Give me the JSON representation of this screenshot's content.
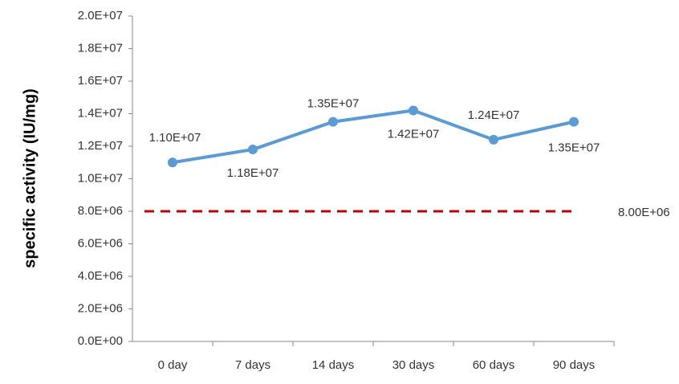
{
  "chart_data": {
    "type": "line",
    "y_label": "specific activity (IU/mg)",
    "categories": [
      "0 day",
      "7 days",
      "14 days",
      "30 days",
      "60 days",
      "90 days"
    ],
    "series": [
      {
        "color": "#5b9bd5",
        "values": [
          11000000,
          11800000,
          13500000,
          14200000,
          12400000,
          13500000
        ],
        "value_labels": [
          "1.10E+07",
          "1.18E+07",
          "1.35E+07",
          "1.42E+07",
          "1.24E+07",
          "1.35E+07"
        ]
      }
    ],
    "reference_line": {
      "value": 8000000,
      "label": "8.00E+06",
      "color": "#c00000",
      "dashed": true
    },
    "ylim": [
      0,
      20000000
    ],
    "yticks": [
      {
        "value": 0,
        "label": "0.0E+00"
      },
      {
        "value": 2000000,
        "label": "2.0E+06"
      },
      {
        "value": 4000000,
        "label": "4.0E+06"
      },
      {
        "value": 6000000,
        "label": "6.0E+06"
      },
      {
        "value": 8000000,
        "label": "8.0E+06"
      },
      {
        "value": 10000000,
        "label": "1.0E+07"
      },
      {
        "value": 12000000,
        "label": "1.2E+07"
      },
      {
        "value": 14000000,
        "label": "1.4E+07"
      },
      {
        "value": 16000000,
        "label": "1.6E+07"
      },
      {
        "value": 18000000,
        "label": "1.8E+07"
      },
      {
        "value": 20000000,
        "label": "2.0E+07"
      }
    ],
    "grid": false
  }
}
